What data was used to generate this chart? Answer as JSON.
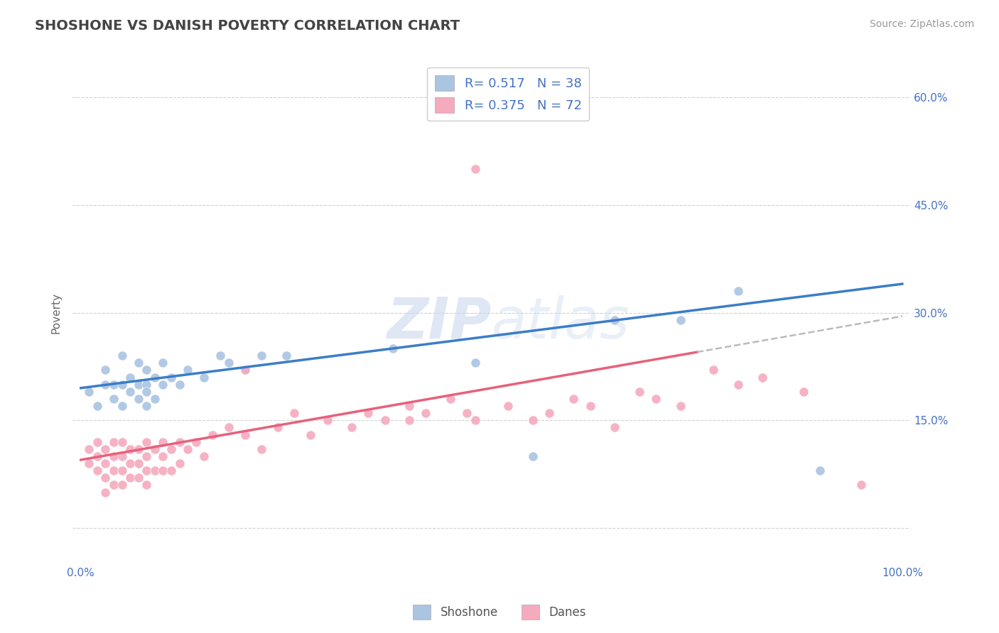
{
  "title": "SHOSHONE VS DANISH POVERTY CORRELATION CHART",
  "source": "Source: ZipAtlas.com",
  "ylabel": "Poverty",
  "background_color": "#ffffff",
  "grid_color": "#d0d0d0",
  "watermark": "ZIPatlas",
  "shoshone_color": "#aac4e2",
  "danes_color": "#f5aabe",
  "shoshone_line_color": "#3a7dc9",
  "danes_line_color": "#e8607a",
  "R_shoshone": 0.517,
  "N_shoshone": 38,
  "R_danes": 0.375,
  "N_danes": 72,
  "ytick_vals": [
    0,
    15,
    30,
    45,
    60
  ],
  "ytick_labels": [
    "",
    "15.0%",
    "30.0%",
    "45.0%",
    "60.0%"
  ],
  "xtick_vals": [
    0,
    100
  ],
  "xtick_labels": [
    "0.0%",
    "100.0%"
  ],
  "shoshone_x": [
    1,
    2,
    3,
    3,
    4,
    4,
    5,
    5,
    5,
    6,
    6,
    7,
    7,
    7,
    8,
    8,
    8,
    8,
    9,
    9,
    10,
    10,
    11,
    12,
    13,
    15,
    17,
    18,
    20,
    22,
    25,
    38,
    48,
    55,
    65,
    73,
    80,
    90
  ],
  "shoshone_y": [
    19,
    17,
    20,
    22,
    20,
    18,
    24,
    20,
    17,
    21,
    19,
    23,
    20,
    18,
    22,
    20,
    19,
    17,
    21,
    18,
    23,
    20,
    21,
    20,
    22,
    21,
    24,
    23,
    22,
    24,
    24,
    25,
    23,
    10,
    29,
    29,
    33,
    8
  ],
  "danes_x": [
    1,
    1,
    2,
    2,
    2,
    3,
    3,
    3,
    3,
    4,
    4,
    4,
    4,
    5,
    5,
    5,
    5,
    6,
    6,
    6,
    7,
    7,
    7,
    8,
    8,
    8,
    8,
    9,
    9,
    10,
    10,
    10,
    11,
    11,
    12,
    12,
    13,
    14,
    15,
    16,
    18,
    20,
    20,
    22,
    24,
    26,
    28,
    30,
    33,
    35,
    37,
    40,
    40,
    42,
    45,
    47,
    48,
    52,
    55,
    57,
    60,
    62,
    65,
    68,
    70,
    73,
    77,
    80,
    83,
    88,
    48,
    95
  ],
  "danes_y": [
    11,
    9,
    12,
    10,
    8,
    11,
    9,
    7,
    5,
    12,
    10,
    8,
    6,
    12,
    10,
    8,
    6,
    11,
    9,
    7,
    11,
    9,
    7,
    12,
    10,
    8,
    6,
    11,
    8,
    12,
    10,
    8,
    11,
    8,
    12,
    9,
    11,
    12,
    10,
    13,
    14,
    13,
    22,
    11,
    14,
    16,
    13,
    15,
    14,
    16,
    15,
    17,
    15,
    16,
    18,
    16,
    15,
    17,
    15,
    16,
    18,
    17,
    14,
    19,
    18,
    17,
    22,
    20,
    21,
    19,
    50,
    6
  ],
  "shoshone_line": [
    0,
    100,
    19.5,
    34.0
  ],
  "danes_line_solid": [
    0,
    75,
    9.5,
    24.5
  ],
  "danes_line_dashed": [
    75,
    100,
    24.5,
    29.5
  ]
}
